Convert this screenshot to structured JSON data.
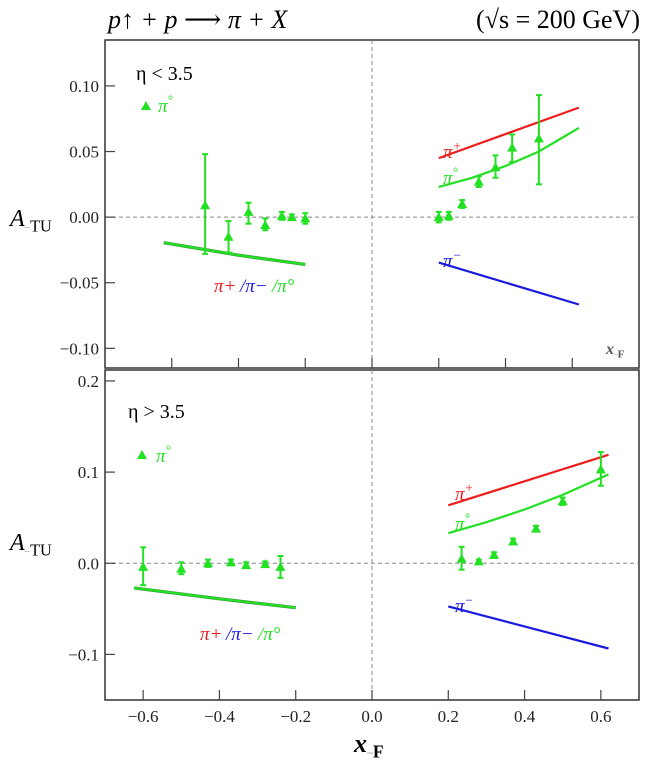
{
  "header": {
    "reaction": "p↑ + p ⟶ π + X",
    "energy": "(√s = 200 GeV)"
  },
  "colors": {
    "pi_plus": "#ee1c1c",
    "pi_minus": "#1a1ae0",
    "pi_zero": "#22e022",
    "data": "#22e022",
    "axis": "#444444"
  },
  "chart_data": [
    {
      "type": "scatter",
      "panel": "top",
      "title": "η < 3.5",
      "xlabel": "x_F",
      "ylabel": "A_TU",
      "xlim": [
        -0.8,
        0.8
      ],
      "ylim": [
        -0.115,
        0.135
      ],
      "xticks": [
        -0.6,
        -0.4,
        -0.2,
        0.0,
        0.2,
        0.4,
        0.6
      ],
      "xtick_labels": [],
      "yticks": [
        0.1,
        0.05,
        0.0,
        -0.05,
        -0.1
      ],
      "ytick_labels": [
        "0.10",
        "0.05",
        "0.00",
        "−0.05",
        "−0.10"
      ],
      "legend": {
        "marker": "triangle",
        "label": "π°",
        "placement": "top-left"
      },
      "points": {
        "name": "π° data",
        "x": [
          -0.5,
          -0.43,
          -0.37,
          -0.32,
          -0.27,
          -0.24,
          -0.2,
          0.2,
          0.23,
          0.27,
          0.32,
          0.37,
          0.42,
          0.5
        ],
        "y": [
          0.009,
          -0.015,
          0.004,
          -0.006,
          0.001,
          0.0,
          -0.001,
          0.0,
          0.001,
          0.01,
          0.027,
          0.038,
          0.053,
          0.06
        ],
        "err_hi": [
          0.048,
          -0.003,
          0.011,
          -0.001,
          0.004,
          0.002,
          0.003,
          0.004,
          0.004,
          0.013,
          0.031,
          0.047,
          0.063,
          0.093
        ],
        "err_lo": [
          -0.028,
          -0.027,
          -0.005,
          -0.01,
          -0.002,
          -0.002,
          -0.005,
          -0.004,
          -0.002,
          0.007,
          0.023,
          0.03,
          0.042,
          0.025
        ]
      },
      "curves": [
        {
          "name": "π+/π−/π° (xF<0)",
          "color_key": "pi_zero",
          "x": [
            -0.624,
            -0.4,
            -0.2
          ],
          "y": [
            -0.0195,
            -0.029,
            -0.036
          ]
        },
        {
          "name": "π+",
          "label": "π+",
          "color_key": "pi_plus",
          "x": [
            0.2,
            0.62
          ],
          "y": [
            0.045,
            0.0835
          ]
        },
        {
          "name": "π°",
          "label": "π°",
          "color_key": "pi_zero",
          "x": [
            0.2,
            0.3,
            0.4,
            0.5,
            0.62
          ],
          "y": [
            0.023,
            0.03,
            0.039,
            0.05,
            0.068
          ]
        },
        {
          "name": "π−",
          "label": "π−",
          "color_key": "pi_minus",
          "x": [
            0.2,
            0.62
          ],
          "y": [
            -0.0347,
            -0.0666
          ]
        }
      ],
      "combined_label": [
        "π+",
        "/π−",
        "/π°"
      ]
    },
    {
      "type": "scatter",
      "panel": "bottom",
      "title": "η > 3.5",
      "xlabel": "x_F",
      "ylabel": "A_TU",
      "xlim": [
        -0.7,
        0.7
      ],
      "ylim": [
        -0.15,
        0.212
      ],
      "xticks": [
        -0.6,
        -0.4,
        -0.2,
        0.0,
        0.2,
        0.4,
        0.6
      ],
      "xtick_labels": [
        "−0.6",
        "−0.4",
        "−0.2",
        "0.0",
        "0.2",
        "0.4",
        "0.6"
      ],
      "yticks": [
        0.2,
        0.1,
        0.0,
        -0.1
      ],
      "ytick_labels": [
        "0.2",
        "0.1",
        "0.0",
        "−0.1"
      ],
      "legend": {
        "marker": "triangle",
        "label": "π°",
        "placement": "top-left"
      },
      "points": {
        "name": "π° data",
        "x": [
          -0.6,
          -0.5,
          -0.43,
          -0.37,
          -0.33,
          -0.28,
          -0.24,
          0.235,
          0.28,
          0.32,
          0.37,
          0.43,
          0.5,
          0.6
        ],
        "y": [
          -0.004,
          -0.006,
          0.0,
          0.001,
          -0.002,
          -0.001,
          -0.004,
          0.005,
          0.002,
          0.009,
          0.024,
          0.038,
          0.068,
          0.103
        ],
        "err_hi": [
          0.0175,
          0.001,
          0.004,
          0.004,
          0.001,
          0.002,
          0.008,
          0.018,
          0.004,
          0.012,
          0.027,
          0.041,
          0.072,
          0.122
        ],
        "err_lo": [
          -0.024,
          -0.012,
          -0.004,
          -0.002,
          -0.005,
          -0.004,
          -0.016,
          -0.007,
          0.0,
          0.006,
          0.021,
          0.035,
          0.064,
          0.085
        ]
      },
      "curves": [
        {
          "name": "π+/π−/π° (xF<0)",
          "color_key": "pi_zero",
          "x": [
            -0.624,
            -0.4,
            -0.2
          ],
          "y": [
            -0.027,
            -0.039,
            -0.0487
          ]
        },
        {
          "name": "π+",
          "label": "π+",
          "color_key": "pi_plus",
          "x": [
            0.2,
            0.62
          ],
          "y": [
            0.0636,
            0.119
          ]
        },
        {
          "name": "π°",
          "label": "π°",
          "color_key": "pi_zero",
          "x": [
            0.2,
            0.3,
            0.4,
            0.5,
            0.62
          ],
          "y": [
            0.033,
            0.045,
            0.059,
            0.075,
            0.0975
          ]
        },
        {
          "name": "π−",
          "label": "π−",
          "color_key": "pi_minus",
          "x": [
            0.2,
            0.62
          ],
          "y": [
            -0.0473,
            -0.0935
          ]
        }
      ],
      "combined_label": [
        "π+",
        "/π−",
        "/π°"
      ]
    }
  ]
}
